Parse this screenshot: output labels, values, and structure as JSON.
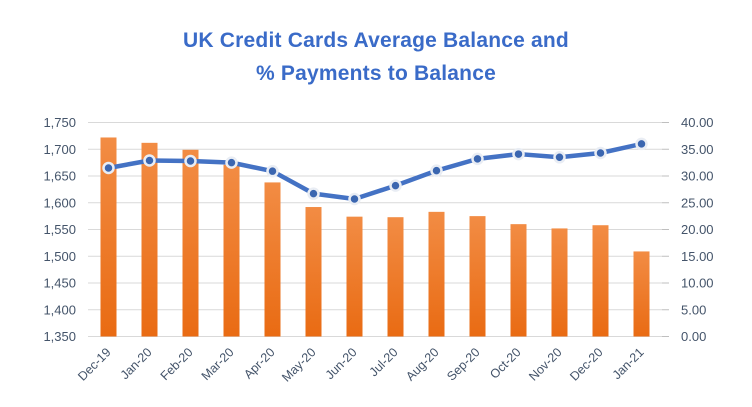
{
  "chart": {
    "title_lines": [
      "UK Credit Cards Average Balance and",
      "% Payments to Balance"
    ]
  },
  "colors": {
    "title_text": "#3a6bc8",
    "axis_text": "#44546a",
    "gridline": "#d9d9d9",
    "tick_mark": "#bfbfbf",
    "bar_top": "#f28c44",
    "bar_bottom": "#e96b13",
    "line": "#4472c4",
    "marker_fill": "#3b66b0",
    "marker_ring": "#e9edf4"
  },
  "chart_data": {
    "type": "combo-bar-line",
    "title": "UK Credit Cards Average Balance and % Payments to Balance",
    "categories": [
      "Dec-19",
      "Jan-20",
      "Feb-20",
      "Mar-20",
      "Apr-20",
      "May-20",
      "Jun-20",
      "Jul-20",
      "Aug-20",
      "Sep-20",
      "Oct-20",
      "Nov-20",
      "Dec-20",
      "Jan-21"
    ],
    "series": [
      {
        "name": "Average Balance",
        "type": "bar",
        "axis": "left",
        "values": [
          1722,
          1712,
          1699,
          1671,
          1638,
          1592,
          1574,
          1573,
          1583,
          1575,
          1560,
          1552,
          1558,
          1509
        ]
      },
      {
        "name": "% Payments to Balance",
        "type": "line",
        "axis": "right",
        "values": [
          31.5,
          32.9,
          32.8,
          32.5,
          30.9,
          26.7,
          25.7,
          28.2,
          31.0,
          33.2,
          34.1,
          33.5,
          34.3,
          36.0
        ]
      }
    ],
    "axes": {
      "left": {
        "min": 1350,
        "max": 1750,
        "step": 50,
        "tick_labels": [
          "1,350",
          "1,400",
          "1,450",
          "1,500",
          "1,550",
          "1,600",
          "1,650",
          "1,700",
          "1,750"
        ]
      },
      "right": {
        "min": 0,
        "max": 40,
        "step": 5,
        "tick_labels": [
          "0.00",
          "5.00",
          "10.00",
          "15.00",
          "20.00",
          "25.00",
          "30.00",
          "35.00",
          "40.00"
        ]
      }
    },
    "grid": true,
    "legend": "none",
    "xlabel": "",
    "ylabel_left": "",
    "ylabel_right": ""
  }
}
